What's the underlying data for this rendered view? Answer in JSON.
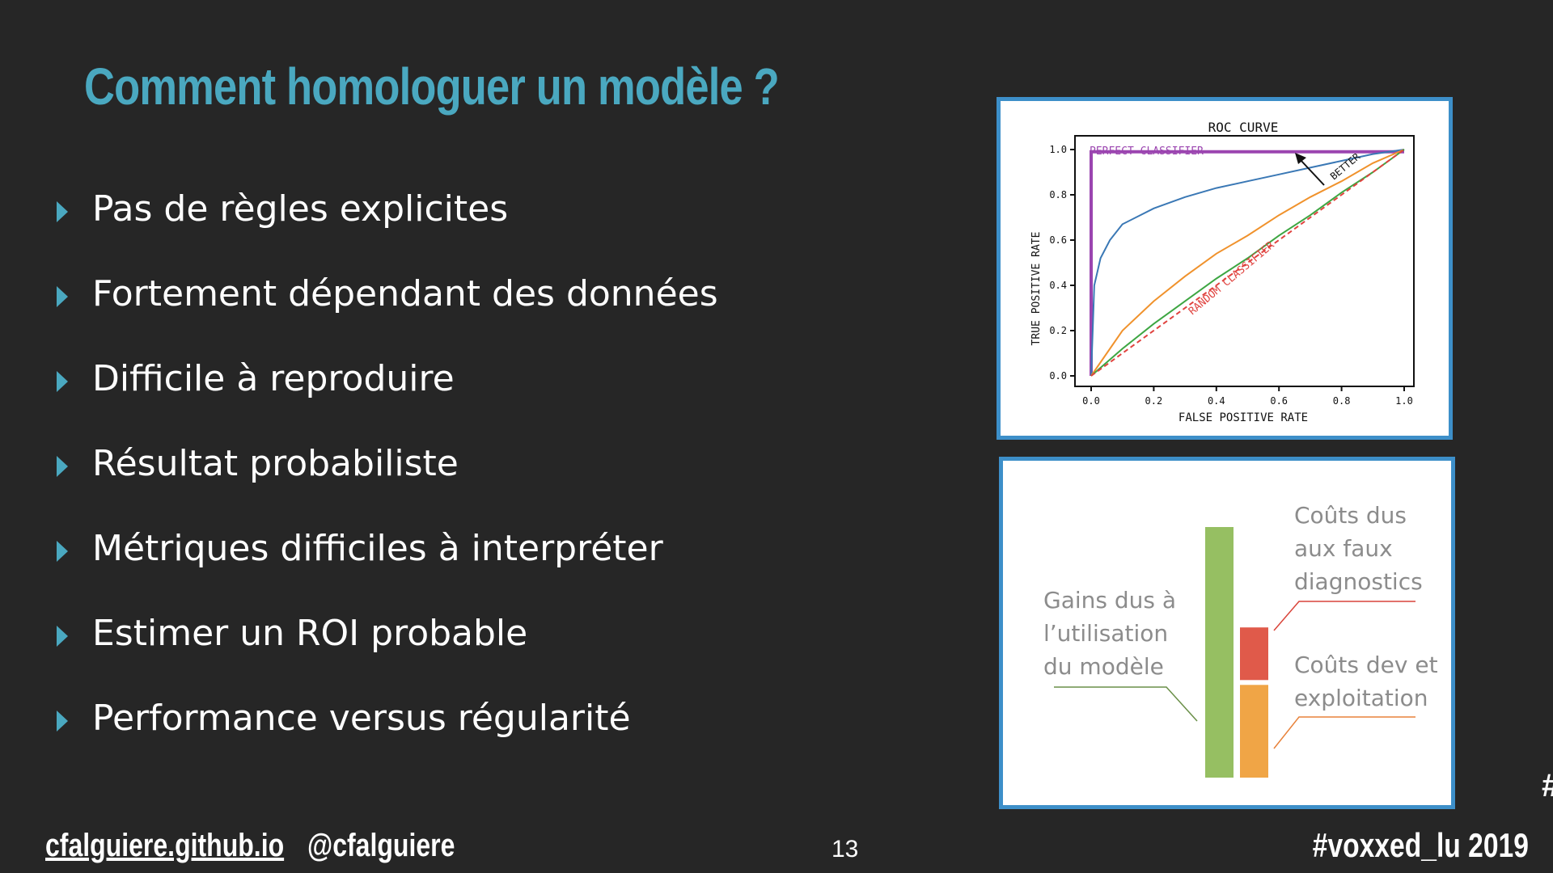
{
  "slide": {
    "title": "Comment homologuer un modèle ?",
    "bullets": [
      "Pas de règles explicites",
      "Fortement dépendant des données",
      "Difficile à reproduire",
      "Résultat probabiliste",
      "Métriques difficiles à interpréter",
      "Estimer un ROI probable",
      "Performance versus régularité"
    ],
    "accent_color": "#4aa8c0",
    "background_color": "#262626"
  },
  "footer": {
    "site": "cfalguiere.github.io",
    "handle": "@cfalguiere",
    "page_number": "13",
    "hashtag": "#voxxed_lu 2019",
    "edge_glyph": "#"
  },
  "roc_chart": {
    "title": "ROC CURVE",
    "xlabel": "FALSE POSITIVE RATE",
    "ylabel": "TRUE POSITIVE RATE",
    "x_ticks": [
      "0.0",
      "0.2",
      "0.4",
      "0.6",
      "0.8",
      "1.0"
    ],
    "y_ticks": [
      "0.0",
      "0.2",
      "0.4",
      "0.6",
      "0.8",
      "1.0"
    ],
    "annotations": {
      "perfect": "PERFECT CLASSIFIER",
      "random": "RANDOM CLASSIFIER",
      "better": "BETTER"
    }
  },
  "chart_data": [
    {
      "type": "line",
      "title": "ROC CURVE",
      "xlabel": "FALSE POSITIVE RATE",
      "ylabel": "TRUE POSITIVE RATE",
      "xlim": [
        0,
        1
      ],
      "ylim": [
        0,
        1
      ],
      "grid": false,
      "series": [
        {
          "name": "PERFECT CLASSIFIER",
          "color": "#9b45b0",
          "x": [
            0,
            0,
            1
          ],
          "y": [
            0,
            0.99,
            0.99
          ]
        },
        {
          "color": "#3a78b5",
          "x": [
            0,
            0.01,
            0.03,
            0.06,
            0.1,
            0.2,
            0.3,
            0.4,
            0.5,
            0.6,
            0.7,
            0.8,
            0.9,
            1.0
          ],
          "y": [
            0,
            0.4,
            0.52,
            0.6,
            0.67,
            0.74,
            0.79,
            0.83,
            0.86,
            0.89,
            0.92,
            0.95,
            0.98,
            1.0
          ]
        },
        {
          "color": "#f0922c",
          "x": [
            0,
            0.1,
            0.2,
            0.3,
            0.4,
            0.5,
            0.6,
            0.7,
            0.8,
            0.9,
            1.0
          ],
          "y": [
            0,
            0.2,
            0.33,
            0.44,
            0.54,
            0.62,
            0.71,
            0.79,
            0.86,
            0.94,
            1.0
          ]
        },
        {
          "color": "#3da642",
          "x": [
            0,
            0.1,
            0.2,
            0.3,
            0.4,
            0.5,
            0.6,
            0.7,
            0.8,
            0.9,
            1.0
          ],
          "y": [
            0,
            0.12,
            0.23,
            0.33,
            0.43,
            0.52,
            0.62,
            0.71,
            0.81,
            0.9,
            1.0
          ]
        },
        {
          "name": "RANDOM CLASSIFIER",
          "color": "#e0433f",
          "dashed": true,
          "x": [
            0,
            1
          ],
          "y": [
            0,
            1
          ]
        }
      ]
    },
    {
      "type": "bar",
      "series": [
        {
          "name": "Gains dus à l’utilisation du modèle",
          "color": "#96bf62",
          "values": [
            1.0
          ]
        },
        {
          "name": "Coûts dus aux faux diagnostics",
          "color": "#e05a4a",
          "values": [
            0.21
          ]
        },
        {
          "name": "Coûts dev et exploitation",
          "color": "#f0a546",
          "values": [
            0.37
          ]
        }
      ]
    }
  ],
  "cost_chart": {
    "label_gains": [
      "Gains dus à",
      "l’utilisation",
      "du modèle"
    ],
    "label_faux": [
      "Coûts dus",
      "aux faux",
      "diagnostics"
    ],
    "label_dev": [
      "Coûts dev et",
      "exploitation"
    ]
  }
}
